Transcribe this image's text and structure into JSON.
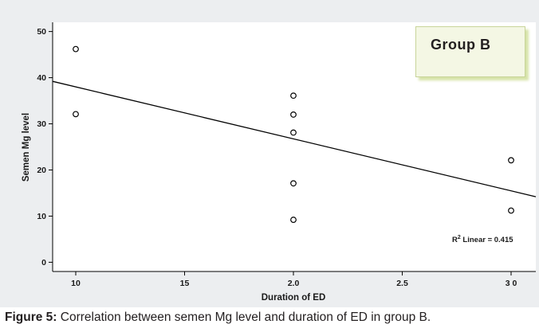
{
  "chart_data": {
    "type": "scatter",
    "xlabel": "Duration of ED",
    "ylabel": "Semen Mg level",
    "x_categories": [
      "10",
      "15",
      "2.0",
      "2.5",
      "3 0"
    ],
    "yticks": [
      "0",
      "10",
      "20",
      "30",
      "40",
      "50"
    ],
    "ylim": [
      -2,
      52
    ],
    "points": [
      {
        "x": "10",
        "y": 46.2
      },
      {
        "x": "10",
        "y": 32.1
      },
      {
        "x": "2.0",
        "y": 36.1
      },
      {
        "x": "2.0",
        "y": 32.0
      },
      {
        "x": "2.0",
        "y": 28.1
      },
      {
        "x": "2.0",
        "y": 17.1
      },
      {
        "x": "2.0",
        "y": 9.2
      },
      {
        "x": "3 0",
        "y": 22.1
      },
      {
        "x": "3 0",
        "y": 11.2
      }
    ],
    "fit_line": {
      "type": "linear",
      "start_y": 39.2,
      "end_y": 14.2
    },
    "annotation": {
      "prefix": "R",
      "sup": "2",
      "suffix": " Linear = 0.415"
    },
    "legend_label": "Group  B",
    "grid": false
  },
  "caption": {
    "label": "Figure 5:",
    "text": " Correlation between semen Mg level and duration of ED in group B."
  }
}
